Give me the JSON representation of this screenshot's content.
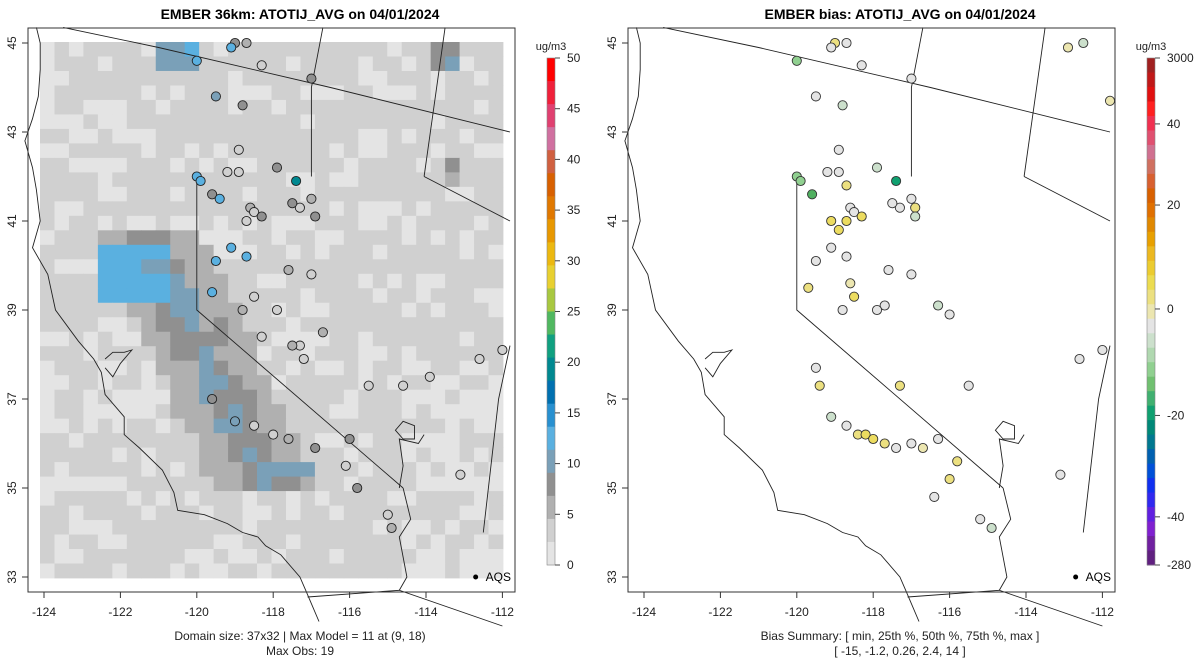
{
  "left_panel": {
    "title": "EMBER 36km: ATOTIJ_AVG on 04/01/2024",
    "caption_line1": "Domain size: 37x32 | Max Model = 11 at (9, 18)",
    "caption_line2": "Max Obs: 19",
    "legend": {
      "unit": "ug/m3",
      "ticks": [
        "50",
        "45",
        "40",
        "35",
        "30",
        "25",
        "20",
        "15",
        "10",
        "5",
        "0"
      ],
      "colors": [
        "#ff0000",
        "#f0203a",
        "#e04070",
        "#d070a0",
        "#d06040",
        "#d86000",
        "#e07800",
        "#e89800",
        "#ecb810",
        "#e8d030",
        "#a8c840",
        "#50b860",
        "#10a080",
        "#008890",
        "#0070b0",
        "#2890d0",
        "#5ab0e0",
        "#7aa0b8",
        "#909090",
        "#b0b0b0",
        "#d0d0d0",
        "#e4e4e4"
      ]
    },
    "aqs_label": "AQS"
  },
  "right_panel": {
    "title": "EMBER bias: ATOTIJ_AVG on 04/01/2024",
    "caption_line1": "Bias Summary: [ min, 25th %, 50th %, 75th %, max ]",
    "caption_line2": "[ -15,  -1.2,  0.26,  2.4,  14 ]",
    "legend": {
      "unit": "ug/m3",
      "ticks": [
        "3000",
        "40",
        "20",
        "0",
        "-20",
        "-40",
        "-280"
      ],
      "colors": [
        "#a02020",
        "#c01818",
        "#e01010",
        "#ff2020",
        "#f03050",
        "#e05070",
        "#d07090",
        "#d07060",
        "#d86030",
        "#d86000",
        "#e07000",
        "#e08800",
        "#e8a000",
        "#ecb820",
        "#eccc30",
        "#ecdc50",
        "#ece080",
        "#ece6b0",
        "#e4e4e4",
        "#cce0cc",
        "#b0d8b0",
        "#90d090",
        "#70c070",
        "#40b070",
        "#10a070",
        "#008878",
        "#007890",
        "#0060b0",
        "#0050d8",
        "#1030f0",
        "#3028f0",
        "#6020e0",
        "#8020d0",
        "#7020a0",
        "#602080"
      ]
    },
    "aqs_label": "AQS"
  },
  "axes": {
    "x_ticks": [
      "-124",
      "-122",
      "-120",
      "-118",
      "-116",
      "-114",
      "-112"
    ],
    "y_ticks": [
      "45",
      "43",
      "41",
      "39",
      "37",
      "35",
      "33"
    ]
  },
  "chart_data": [
    {
      "type": "heatmap",
      "title": "EMBER 36km: ATOTIJ_AVG on 04/01/2024",
      "xlabel": "",
      "ylabel": "",
      "xlim": [
        -124.3,
        -111.8
      ],
      "ylim": [
        32.8,
        45.35
      ],
      "colorbar": {
        "label": "ug/m3",
        "range": [
          0,
          50
        ]
      },
      "domain_size": "37x32",
      "max_model": 11,
      "max_obs": 19,
      "obs_points": [
        [
          -119.0,
          45.0,
          6
        ],
        [
          -118.7,
          45.0,
          4
        ],
        [
          -120.0,
          44.6,
          11
        ],
        [
          -119.1,
          44.9,
          9
        ],
        [
          -118.3,
          44.5,
          1
        ],
        [
          -117.0,
          44.2,
          6
        ],
        [
          -119.5,
          43.8,
          7
        ],
        [
          -118.8,
          43.6,
          6
        ],
        [
          -118.9,
          42.6,
          1
        ],
        [
          -117.9,
          42.2,
          6
        ],
        [
          -117.4,
          41.9,
          19
        ],
        [
          -120.0,
          42.0,
          11
        ],
        [
          -119.9,
          41.9,
          11
        ],
        [
          -119.2,
          42.1,
          2
        ],
        [
          -118.9,
          42.1,
          2
        ],
        [
          -119.6,
          41.6,
          5
        ],
        [
          -119.4,
          41.5,
          11
        ],
        [
          -118.6,
          41.3,
          3
        ],
        [
          -118.5,
          41.2,
          1
        ],
        [
          -118.7,
          41.0,
          2
        ],
        [
          -118.3,
          41.1,
          6
        ],
        [
          -117.3,
          41.3,
          2
        ],
        [
          -117.5,
          41.4,
          6
        ],
        [
          -117.0,
          41.5,
          3
        ],
        [
          -116.9,
          41.1,
          5
        ],
        [
          -119.1,
          40.4,
          9
        ],
        [
          -118.7,
          40.2,
          11
        ],
        [
          -119.5,
          40.1,
          11
        ],
        [
          -117.6,
          39.9,
          4
        ],
        [
          -117.0,
          39.8,
          1
        ],
        [
          -119.6,
          39.4,
          11
        ],
        [
          -118.5,
          39.3,
          2
        ],
        [
          -118.8,
          39.0,
          4
        ],
        [
          -117.9,
          39.0,
          1
        ],
        [
          -117.3,
          38.2,
          2
        ],
        [
          -116.7,
          38.5,
          4
        ],
        [
          -118.3,
          38.4,
          1
        ],
        [
          -117.5,
          38.2,
          3
        ],
        [
          -117.2,
          37.9,
          2
        ],
        [
          -115.5,
          37.3,
          1
        ],
        [
          -114.6,
          37.3,
          1
        ],
        [
          -119.6,
          37.0,
          6
        ],
        [
          -119.0,
          36.5,
          8
        ],
        [
          -118.5,
          36.4,
          2
        ],
        [
          -118.0,
          36.2,
          1
        ],
        [
          -117.6,
          36.1,
          3
        ],
        [
          -116.9,
          35.9,
          5
        ],
        [
          -116.0,
          36.1,
          6
        ],
        [
          -116.1,
          35.5,
          1
        ],
        [
          -115.8,
          35.0,
          5
        ],
        [
          -115.0,
          34.4,
          1
        ],
        [
          -114.9,
          34.1,
          4
        ],
        [
          -113.1,
          35.3,
          1
        ],
        [
          -112.0,
          38.1,
          1
        ],
        [
          -112.6,
          37.9,
          1
        ],
        [
          -113.9,
          37.5,
          1
        ]
      ]
    },
    {
      "type": "scatter",
      "title": "EMBER bias: ATOTIJ_AVG on 04/01/2024",
      "xlabel": "",
      "ylabel": "",
      "xlim": [
        -124.3,
        -111.8
      ],
      "ylim": [
        32.8,
        45.35
      ],
      "colorbar": {
        "label": "ug/m3",
        "ticks": [
          3000,
          40,
          20,
          0,
          -20,
          -40,
          -280
        ]
      },
      "bias_summary": {
        "min": -15,
        "p25": -1.2,
        "p50": 0.26,
        "p75": 2.4,
        "max": 14
      },
      "points": [
        [
          -119.0,
          45.0,
          3
        ],
        [
          -118.7,
          45.0,
          0
        ],
        [
          -120.0,
          44.6,
          -4
        ],
        [
          -119.1,
          44.9,
          0
        ],
        [
          -118.3,
          44.5,
          0
        ],
        [
          -117.0,
          44.2,
          0
        ],
        [
          -119.5,
          43.8,
          0
        ],
        [
          -118.8,
          43.6,
          -2
        ],
        [
          -118.9,
          42.6,
          0
        ],
        [
          -117.9,
          42.2,
          -3
        ],
        [
          -117.4,
          41.9,
          -15
        ],
        [
          -120.0,
          42.0,
          -5
        ],
        [
          -119.9,
          41.9,
          -5
        ],
        [
          -119.2,
          42.1,
          0
        ],
        [
          -118.9,
          42.1,
          0
        ],
        [
          -119.6,
          41.6,
          -8
        ],
        [
          -118.7,
          41.8,
          3
        ],
        [
          -118.6,
          41.3,
          0
        ],
        [
          -118.5,
          41.2,
          0
        ],
        [
          -118.7,
          41.0,
          6
        ],
        [
          -118.3,
          41.1,
          6
        ],
        [
          -119.1,
          41.0,
          5
        ],
        [
          -118.9,
          40.8,
          6
        ],
        [
          -117.3,
          41.3,
          0
        ],
        [
          -117.5,
          41.4,
          0
        ],
        [
          -117.0,
          41.5,
          0
        ],
        [
          -116.9,
          41.3,
          4
        ],
        [
          -116.9,
          41.1,
          -1
        ],
        [
          -119.1,
          40.4,
          0
        ],
        [
          -118.7,
          40.2,
          0
        ],
        [
          -119.5,
          40.1,
          0
        ],
        [
          -117.6,
          39.9,
          0
        ],
        [
          -117.0,
          39.8,
          0
        ],
        [
          -119.7,
          39.5,
          4
        ],
        [
          -118.6,
          39.6,
          2
        ],
        [
          -118.5,
          39.3,
          5
        ],
        [
          -117.7,
          39.1,
          0
        ],
        [
          -116.3,
          39.1,
          -2
        ],
        [
          -116.0,
          38.9,
          0
        ],
        [
          -118.8,
          39.0,
          0
        ],
        [
          -117.9,
          39.0,
          0
        ],
        [
          -119.5,
          37.7,
          0
        ],
        [
          -119.4,
          37.3,
          3
        ],
        [
          -117.3,
          37.3,
          3
        ],
        [
          -115.5,
          37.3,
          0
        ],
        [
          -119.1,
          36.6,
          -2
        ],
        [
          -118.7,
          36.4,
          0
        ],
        [
          -118.4,
          36.2,
          4
        ],
        [
          -118.2,
          36.2,
          6
        ],
        [
          -118.0,
          36.1,
          5
        ],
        [
          -117.7,
          36.0,
          3
        ],
        [
          -117.4,
          35.9,
          0
        ],
        [
          -117.0,
          36.0,
          0
        ],
        [
          -116.7,
          35.9,
          2
        ],
        [
          -116.3,
          36.1,
          0
        ],
        [
          -115.8,
          35.6,
          3
        ],
        [
          -116.0,
          35.2,
          3
        ],
        [
          -116.4,
          34.8,
          0
        ],
        [
          -115.2,
          34.3,
          0
        ],
        [
          -114.9,
          34.1,
          -2
        ],
        [
          -113.1,
          35.3,
          0
        ],
        [
          -112.0,
          38.1,
          0
        ],
        [
          -112.6,
          37.9,
          0
        ],
        [
          -112.9,
          44.9,
          1
        ],
        [
          -112.5,
          45.0,
          -1
        ],
        [
          -111.8,
          43.7,
          2
        ]
      ]
    }
  ]
}
